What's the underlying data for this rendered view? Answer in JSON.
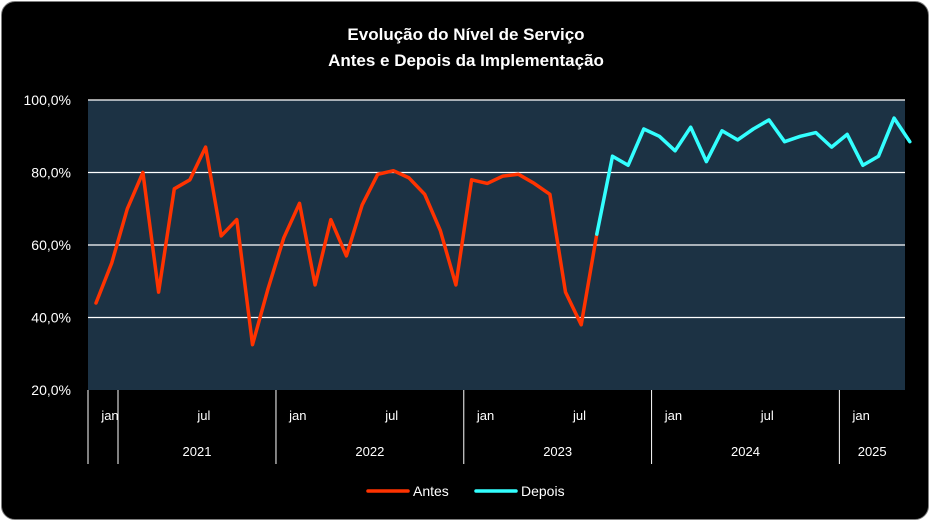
{
  "chart_data": {
    "type": "line",
    "title": "Evolução do Nível de Serviço",
    "subtitle": "Antes e Depois da Implementação",
    "ylim": [
      20,
      100
    ],
    "y_ticks": [
      "20,0%",
      "40,0%",
      "60,0%",
      "80,0%",
      "100,0%"
    ],
    "y_tick_values": [
      20,
      40,
      60,
      80,
      100
    ],
    "grid": true,
    "legend_position": "bottom",
    "month_ticks": [
      {
        "label": "jan",
        "index": 0
      },
      {
        "label": "jul",
        "index": 6
      },
      {
        "label": "jan",
        "index": 12
      },
      {
        "label": "jul",
        "index": 18
      },
      {
        "label": "jan",
        "index": 24
      },
      {
        "label": "jul",
        "index": 30
      },
      {
        "label": "jan",
        "index": 36
      },
      {
        "label": "jul",
        "index": 42
      },
      {
        "label": "jan",
        "index": 48
      }
    ],
    "years": [
      {
        "label": "2021",
        "start": 0,
        "end": 12
      },
      {
        "label": "2022",
        "start": 12,
        "end": 24
      },
      {
        "label": "2023",
        "start": 24,
        "end": 36
      },
      {
        "label": "2024",
        "start": 36,
        "end": 48
      },
      {
        "label": "2025",
        "start": 48,
        "end": 52
      }
    ],
    "series": [
      {
        "name": "Antes",
        "color": "#ff3300",
        "start_index": 0,
        "values": [
          44,
          55,
          70,
          80,
          47,
          75.5,
          78,
          87,
          62.5,
          67,
          32.5,
          48,
          62,
          71.5,
          49,
          67,
          57,
          71,
          79.5,
          80.5,
          78.5,
          74,
          64,
          49,
          78,
          77,
          79,
          79.5,
          77,
          74,
          47,
          38,
          63
        ]
      },
      {
        "name": "Depois",
        "color": "#33ffff",
        "start_index": 32,
        "values": [
          63,
          84.5,
          82,
          92,
          90,
          86,
          92.5,
          83,
          91.5,
          89,
          92,
          94.5,
          88.5,
          90,
          91,
          87,
          90.5,
          82,
          84.5,
          95,
          88.5
        ]
      }
    ]
  }
}
